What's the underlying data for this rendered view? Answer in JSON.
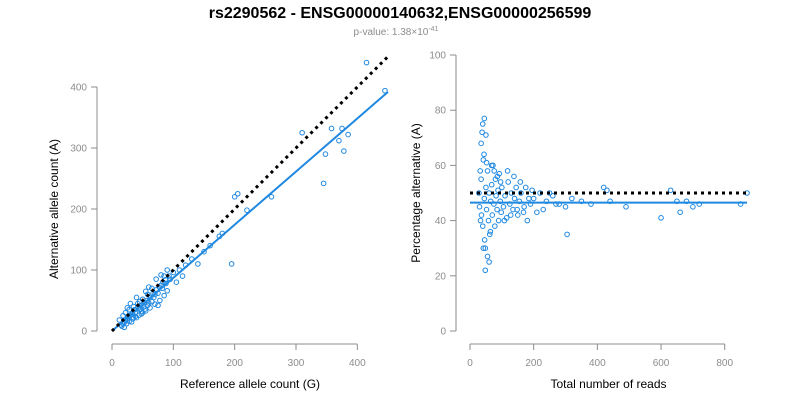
{
  "figure": {
    "title": "rs2290562 - ENSG00000140632,ENSG00000256599",
    "subtitle_prefix": "p-value: 1.38×10",
    "subtitle_exponent": "-41"
  },
  "colors": {
    "points": "#1f88e0",
    "fit": "#1f88e0",
    "reference": "#000000"
  },
  "chart_data": [
    {
      "type": "scatter",
      "xlabel": "Reference allele count (G)",
      "ylabel": "Alternative allele count (A)",
      "xlim": [
        0,
        450
      ],
      "ylim": [
        0,
        400
      ],
      "xticks": [
        0,
        100,
        200,
        300,
        400
      ],
      "yticks": [
        0,
        100,
        200,
        300,
        400
      ],
      "fit_line": {
        "x": [
          0,
          450
        ],
        "y": [
          0,
          392
        ]
      },
      "reference_line": {
        "x": [
          0,
          450
        ],
        "y": [
          0,
          450
        ]
      },
      "points": [
        [
          12,
          18
        ],
        [
          15,
          10
        ],
        [
          18,
          25
        ],
        [
          20,
          14
        ],
        [
          22,
          30
        ],
        [
          25,
          20
        ],
        [
          28,
          35
        ],
        [
          30,
          26
        ],
        [
          32,
          15
        ],
        [
          35,
          40
        ],
        [
          38,
          30
        ],
        [
          40,
          22
        ],
        [
          42,
          45
        ],
        [
          45,
          36
        ],
        [
          48,
          28
        ],
        [
          50,
          52
        ],
        [
          52,
          40
        ],
        [
          55,
          33
        ],
        [
          58,
          60
        ],
        [
          60,
          46
        ],
        [
          62,
          38
        ],
        [
          65,
          70
        ],
        [
          68,
          55
        ],
        [
          70,
          44
        ],
        [
          72,
          85
        ],
        [
          75,
          62
        ],
        [
          78,
          50
        ],
        [
          80,
          92
        ],
        [
          82,
          70
        ],
        [
          85,
          58
        ],
        [
          88,
          78
        ],
        [
          90,
          66
        ],
        [
          95,
          85
        ],
        [
          100,
          96
        ],
        [
          105,
          80
        ],
        [
          110,
          100
        ],
        [
          115,
          90
        ],
        [
          120,
          108
        ],
        [
          130,
          118
        ],
        [
          140,
          110
        ],
        [
          150,
          130
        ],
        [
          160,
          140
        ],
        [
          175,
          155
        ],
        [
          180,
          160
        ],
        [
          195,
          110
        ],
        [
          200,
          220
        ],
        [
          205,
          225
        ],
        [
          220,
          198
        ],
        [
          260,
          220
        ],
        [
          310,
          325
        ],
        [
          345,
          242
        ],
        [
          348,
          290
        ],
        [
          358,
          332
        ],
        [
          370,
          312
        ],
        [
          375,
          332
        ],
        [
          378,
          295
        ],
        [
          385,
          322
        ],
        [
          415,
          440
        ],
        [
          445,
          394
        ],
        [
          25,
          38
        ],
        [
          30,
          45
        ],
        [
          35,
          22
        ],
        [
          40,
          55
        ],
        [
          45,
          48
        ],
        [
          50,
          30
        ],
        [
          55,
          65
        ],
        [
          60,
          72
        ],
        [
          65,
          48
        ],
        [
          70,
          60
        ],
        [
          75,
          42
        ],
        [
          80,
          75
        ],
        [
          85,
          90
        ],
        [
          90,
          100
        ],
        [
          18,
          12
        ],
        [
          22,
          18
        ],
        [
          26,
          24
        ],
        [
          33,
          28
        ],
        [
          37,
          35
        ],
        [
          43,
          38
        ],
        [
          47,
          42
        ],
        [
          53,
          46
        ],
        [
          57,
          50
        ],
        [
          63,
          55
        ],
        [
          67,
          62
        ],
        [
          73,
          68
        ],
        [
          77,
          72
        ],
        [
          83,
          80
        ],
        [
          87,
          84
        ],
        [
          93,
          90
        ],
        [
          16,
          8
        ],
        [
          20,
          6
        ],
        [
          24,
          12
        ],
        [
          28,
          16
        ],
        [
          34,
          20
        ],
        [
          38,
          24
        ],
        [
          44,
          26
        ],
        [
          48,
          32
        ],
        [
          54,
          36
        ],
        [
          58,
          42
        ]
      ]
    },
    {
      "type": "scatter",
      "xlabel": "Total number of reads",
      "ylabel": "Percentage alternative (A)",
      "xlim": [
        0,
        870
      ],
      "ylim": [
        0,
        100
      ],
      "xticks": [
        0,
        200,
        400,
        600,
        800
      ],
      "yticks": [
        0,
        20,
        40,
        60,
        80,
        100
      ],
      "fit_line": {
        "x": [
          0,
          870
        ],
        "y": [
          46.5,
          46.5
        ]
      },
      "reference_line": {
        "x": [
          0,
          870
        ],
        "y": [
          50,
          50
        ]
      },
      "points": [
        [
          30,
          45
        ],
        [
          35,
          55
        ],
        [
          40,
          38
        ],
        [
          42,
          62
        ],
        [
          45,
          48
        ],
        [
          48,
          30
        ],
        [
          50,
          52
        ],
        [
          52,
          44
        ],
        [
          55,
          58
        ],
        [
          58,
          40
        ],
        [
          60,
          50
        ],
        [
          62,
          35
        ],
        [
          65,
          47
        ],
        [
          68,
          53
        ],
        [
          70,
          42
        ],
        [
          72,
          60
        ],
        [
          75,
          46
        ],
        [
          78,
          38
        ],
        [
          80,
          55
        ],
        [
          82,
          49
        ],
        [
          85,
          44
        ],
        [
          88,
          51
        ],
        [
          90,
          40
        ],
        [
          92,
          57
        ],
        [
          95,
          47
        ],
        [
          98,
          43
        ],
        [
          100,
          52
        ],
        [
          105,
          45
        ],
        [
          110,
          49
        ],
        [
          115,
          41
        ],
        [
          120,
          54
        ],
        [
          125,
          46
        ],
        [
          130,
          50
        ],
        [
          135,
          44
        ],
        [
          140,
          48
        ],
        [
          145,
          52
        ],
        [
          150,
          42
        ],
        [
          155,
          47
        ],
        [
          160,
          50
        ],
        [
          170,
          45
        ],
        [
          175,
          52
        ],
        [
          180,
          40
        ],
        [
          190,
          46
        ],
        [
          200,
          48
        ],
        [
          210,
          43
        ],
        [
          220,
          50
        ],
        [
          240,
          47
        ],
        [
          260,
          49
        ],
        [
          280,
          46
        ],
        [
          300,
          45
        ],
        [
          305,
          35
        ],
        [
          320,
          48
        ],
        [
          350,
          47
        ],
        [
          380,
          46
        ],
        [
          420,
          52
        ],
        [
          430,
          51
        ],
        [
          440,
          47
        ],
        [
          490,
          45
        ],
        [
          600,
          41
        ],
        [
          630,
          51
        ],
        [
          650,
          47
        ],
        [
          660,
          43
        ],
        [
          680,
          47
        ],
        [
          700,
          45
        ],
        [
          720,
          46
        ],
        [
          850,
          46
        ],
        [
          870,
          50
        ],
        [
          40,
          75
        ],
        [
          45,
          77
        ],
        [
          50,
          71
        ],
        [
          38,
          72
        ],
        [
          35,
          68
        ],
        [
          48,
          22
        ],
        [
          55,
          27
        ],
        [
          60,
          25
        ],
        [
          42,
          30
        ],
        [
          46,
          33
        ],
        [
          33,
          40
        ],
        [
          36,
          42
        ],
        [
          28,
          50
        ],
        [
          32,
          58
        ],
        [
          44,
          64
        ],
        [
          52,
          61
        ],
        [
          64,
          36
        ],
        [
          68,
          60
        ],
        [
          76,
          58
        ],
        [
          86,
          56
        ],
        [
          96,
          54
        ],
        [
          108,
          40
        ],
        [
          118,
          58
        ],
        [
          128,
          42
        ],
        [
          138,
          56
        ],
        [
          148,
          44
        ],
        [
          158,
          54
        ],
        [
          168,
          43
        ],
        [
          185,
          48
        ],
        [
          195,
          51
        ],
        [
          230,
          44
        ],
        [
          250,
          50
        ],
        [
          270,
          46
        ]
      ]
    }
  ]
}
